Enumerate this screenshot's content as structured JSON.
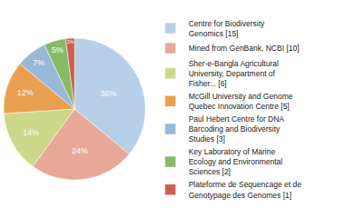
{
  "chart_data": {
    "type": "pie",
    "categories": [
      "Centre for Biodiversity\nGenomics [15]",
      "Mined from GenBank, NCBI [10]",
      "Sher-e-Bangla Agricultural\nUniversity, Department of\nFisher... [6]",
      "McGill University and Genome\nQuebec Innovation Centre [5]",
      "Paul Hebert Centre for DNA\nBarcoding and Biodiversity\nStudies [3]",
      "Key Laboratory of Marine\nEcology and Environmental\nSciences [2]",
      "Plateforme de Sequencage et de\nGenotypage des Genomes [1]"
    ],
    "values": [
      36,
      24,
      14,
      12,
      7,
      5,
      2
    ],
    "value_labels": [
      "36%",
      "24%",
      "14%",
      "12%",
      "7%",
      "5%",
      "2%"
    ],
    "colors": [
      "#b8cfe8",
      "#e8a898",
      "#ccd98a",
      "#e8a050",
      "#98b8d8",
      "#88bb68",
      "#cc6050"
    ],
    "data_labels": true,
    "legend": "right"
  }
}
